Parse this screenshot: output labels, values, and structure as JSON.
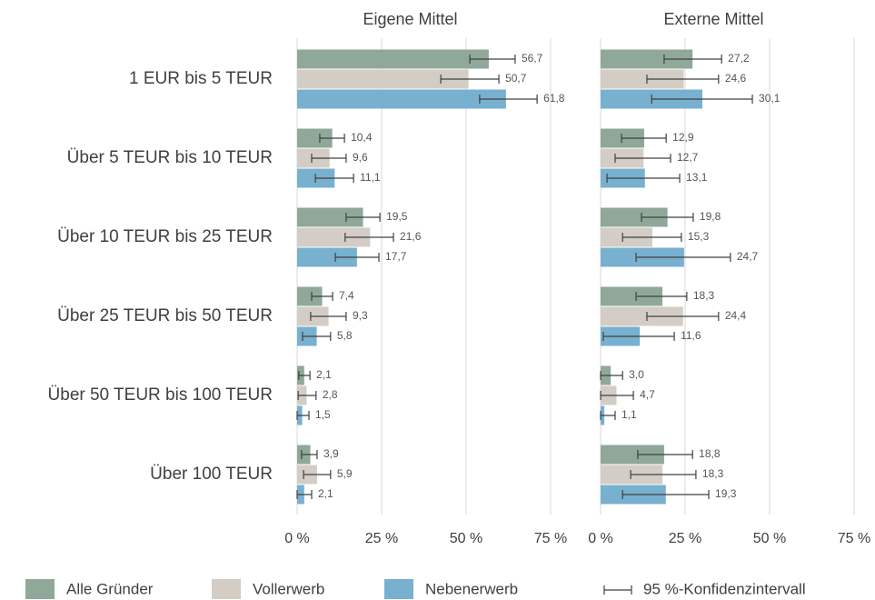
{
  "chart_data": {
    "type": "bar",
    "orientation": "horizontal",
    "categories": [
      "1 EUR bis 5 TEUR",
      "Über 5 TEUR bis 10 TEUR",
      "Über 10 TEUR bis 25 TEUR",
      "Über 25 TEUR bis 50 TEUR",
      "Über 50 TEUR bis 100 TEUR",
      "Über 100 TEUR"
    ],
    "legend": [
      {
        "name": "Alle Gründer",
        "color": "#8fa89a"
      },
      {
        "name": "Vollerwerb",
        "color": "#d3cdc6"
      },
      {
        "name": "Nebenerwerb",
        "color": "#78b0cf"
      }
    ],
    "ci_label": "95 %-Konfidenzintervall",
    "xlim": [
      0,
      75
    ],
    "xticks": [
      {
        "value": 0,
        "label": "0 %"
      },
      {
        "value": 25,
        "label": "25 %"
      },
      {
        "value": 50,
        "label": "50 %"
      },
      {
        "value": 75,
        "label": "75 %"
      }
    ],
    "grid": true,
    "panels": [
      {
        "title": "Eigene Mittel",
        "series": [
          {
            "values": [
              56.7,
              10.4,
              19.5,
              7.4,
              2.1,
              3.9
            ],
            "value_labels": [
              "56,7",
              "10,4",
              "19,5",
              "7,4",
              "2,1",
              "3,9"
            ],
            "ci": [
              [
                51.1,
                64.5
              ],
              [
                6.7,
                14.0
              ],
              [
                14.5,
                24.5
              ],
              [
                4.3,
                10.5
              ],
              [
                0.5,
                3.8
              ],
              [
                1.3,
                5.9
              ]
            ]
          },
          {
            "values": [
              50.7,
              9.6,
              21.6,
              9.3,
              2.8,
              5.9
            ],
            "value_labels": [
              "50,7",
              "9,6",
              "21,6",
              "9,3",
              "2,8",
              "5,9"
            ],
            "ci": [
              [
                42.5,
                59.7
              ],
              [
                4.3,
                14.5
              ],
              [
                14.2,
                28.5
              ],
              [
                4.0,
                14.5
              ],
              [
                0.3,
                5.6
              ],
              [
                1.9,
                9.9
              ]
            ]
          },
          {
            "values": [
              61.8,
              11.1,
              17.7,
              5.8,
              1.5,
              2.1
            ],
            "value_labels": [
              "61,8",
              "11,1",
              "17,7",
              "5,8",
              "1,5",
              "2,1"
            ],
            "ci": [
              [
                54.0,
                71.0
              ],
              [
                5.4,
                16.7
              ],
              [
                11.3,
                24.2
              ],
              [
                1.6,
                9.9
              ],
              [
                0,
                3.5
              ],
              [
                0,
                4.3
              ]
            ]
          }
        ]
      },
      {
        "title": "Externe Mittel",
        "series": [
          {
            "values": [
              27.2,
              12.9,
              19.8,
              18.3,
              3.0,
              18.8
            ],
            "value_labels": [
              "27,2",
              "12,9",
              "19,8",
              "18,3",
              "3,0",
              "18,8"
            ],
            "ci": [
              [
                18.8,
                35.8
              ],
              [
                6.2,
                19.4
              ],
              [
                12.1,
                27.4
              ],
              [
                10.5,
                25.5
              ],
              [
                0,
                6.5
              ],
              [
                11.0,
                27.2
              ]
            ]
          },
          {
            "values": [
              24.6,
              12.7,
              15.3,
              24.4,
              4.7,
              18.3
            ],
            "value_labels": [
              "24,6",
              "12,7",
              "15,3",
              "24,4",
              "4,7",
              "18,3"
            ],
            "ci": [
              [
                13.7,
                34.9
              ],
              [
                4.3,
                20.7
              ],
              [
                6.5,
                23.9
              ],
              [
                13.7,
                34.9
              ],
              [
                0,
                9.7
              ],
              [
                8.9,
                28.2
              ]
            ]
          },
          {
            "values": [
              30.1,
              13.1,
              24.7,
              11.6,
              1.1,
              19.3
            ],
            "value_labels": [
              "30,1",
              "13,1",
              "24,7",
              "11,6",
              "1,1",
              "19,3"
            ],
            "ci": [
              [
                15.1,
                44.9
              ],
              [
                1.9,
                23.4
              ],
              [
                10.5,
                38.4
              ],
              [
                0.8,
                21.8
              ],
              [
                0,
                4.3
              ],
              [
                6.5,
                32.0
              ]
            ]
          }
        ]
      }
    ]
  }
}
